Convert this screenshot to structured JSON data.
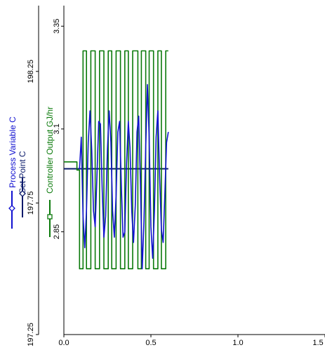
{
  "chart_data": {
    "type": "line",
    "title": "",
    "xlabel": "",
    "colors": {
      "process_variable": "#1010d0",
      "set_point": "#0a1a6a",
      "controller_output": "#0a7a0a",
      "axis": "#000000"
    },
    "x_axis": {
      "range": [
        0.0,
        1.5
      ],
      "ticks": [
        0.0,
        0.5,
        1.0,
        1.5
      ],
      "tick_labels": [
        "0.0",
        "0.5",
        "1.0",
        "1.5"
      ]
    },
    "left_axis": {
      "range": [
        197.25,
        198.5
      ],
      "ticks": [
        197.25,
        197.75,
        198.25
      ],
      "tick_labels": [
        "197.25",
        "197.75",
        "198.25"
      ],
      "legend": [
        "Process Variable C",
        "Set Point C"
      ]
    },
    "right_axis": {
      "label": "Controller Output GJ/hr",
      "range": [
        2.6,
        3.4
      ],
      "ticks": [
        2.85,
        3.1,
        3.35
      ],
      "tick_labels": [
        "2.85",
        "3.1",
        "3.35"
      ]
    },
    "series": [
      {
        "name": "Set Point C",
        "axis": "left",
        "x": [
          0.0,
          0.6
        ],
        "y": [
          197.88,
          197.88
        ]
      },
      {
        "name": "Controller Output GJ/hr",
        "axis": "right",
        "x": [
          0.0,
          0.075,
          0.075,
          0.09,
          0.09,
          0.11,
          0.11,
          0.13,
          0.13,
          0.155,
          0.155,
          0.18,
          0.18,
          0.205,
          0.205,
          0.23,
          0.23,
          0.255,
          0.255,
          0.275,
          0.275,
          0.3,
          0.3,
          0.325,
          0.325,
          0.35,
          0.35,
          0.37,
          0.37,
          0.395,
          0.395,
          0.425,
          0.425,
          0.445,
          0.445,
          0.47,
          0.47,
          0.49,
          0.49,
          0.515,
          0.515,
          0.54,
          0.54,
          0.56,
          0.56,
          0.585,
          0.585,
          0.6
        ],
        "y": [
          3.02,
          3.02,
          3.0,
          3.0,
          2.76,
          2.76,
          3.29,
          3.29,
          2.76,
          2.76,
          3.29,
          3.29,
          2.76,
          2.76,
          3.29,
          3.29,
          2.76,
          2.76,
          3.29,
          3.29,
          2.76,
          2.76,
          3.29,
          3.29,
          2.76,
          2.76,
          3.29,
          3.29,
          2.76,
          2.76,
          3.29,
          3.29,
          2.76,
          2.76,
          3.29,
          3.29,
          2.76,
          2.76,
          3.29,
          3.29,
          2.76,
          2.76,
          3.29,
          3.29,
          2.76,
          2.76,
          3.29,
          3.29
        ]
      },
      {
        "name": "Process Variable C",
        "axis": "left",
        "x": [
          0.09,
          0.1,
          0.11,
          0.12,
          0.13,
          0.14,
          0.15,
          0.16,
          0.17,
          0.18,
          0.19,
          0.2,
          0.21,
          0.22,
          0.23,
          0.24,
          0.25,
          0.26,
          0.27,
          0.28,
          0.29,
          0.3,
          0.31,
          0.32,
          0.33,
          0.34,
          0.35,
          0.36,
          0.37,
          0.38,
          0.39,
          0.4,
          0.41,
          0.42,
          0.43,
          0.44,
          0.45,
          0.46,
          0.47,
          0.48,
          0.49,
          0.5,
          0.51,
          0.52,
          0.53,
          0.54,
          0.55,
          0.56,
          0.57,
          0.58,
          0.59,
          0.6
        ],
        "y": [
          197.88,
          198.0,
          197.7,
          197.58,
          197.72,
          197.98,
          198.1,
          197.95,
          197.72,
          197.66,
          197.85,
          198.06,
          198.05,
          197.8,
          197.62,
          197.7,
          197.95,
          198.1,
          197.98,
          197.72,
          197.62,
          197.78,
          198.02,
          198.06,
          197.82,
          197.62,
          197.64,
          197.9,
          198.06,
          197.96,
          197.72,
          197.6,
          197.74,
          198.02,
          198.08,
          197.82,
          197.5,
          197.68,
          197.96,
          198.2,
          198.0,
          197.66,
          197.54,
          197.72,
          198.0,
          198.1,
          197.85,
          197.65,
          197.6,
          197.78,
          197.98,
          198.02
        ]
      }
    ]
  }
}
